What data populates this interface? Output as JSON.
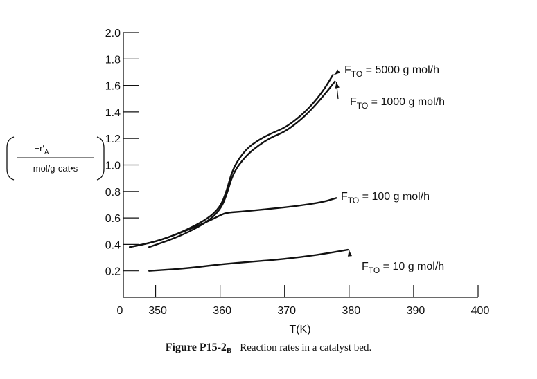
{
  "chart_data": {
    "type": "line",
    "xlabel": "T(K)",
    "ylabel": {
      "numerator": "−r′",
      "numerator_sub": "A",
      "denominator": "mol/g-cat•s"
    },
    "xlim": [
      345,
      400
    ],
    "ylim": [
      0,
      2.0
    ],
    "x_ticks": [
      350,
      360,
      370,
      380,
      390,
      400
    ],
    "x_zero_label": "0",
    "y_ticks": [
      0.2,
      0.4,
      0.6,
      0.8,
      1.0,
      1.2,
      1.4,
      1.6,
      1.8,
      2.0
    ],
    "y_tick_labels": [
      "0.2",
      "0.4",
      "0.6",
      "0.8",
      "1.0",
      "1.2",
      "1.4",
      "1.6",
      "1.8",
      "2.0"
    ],
    "grid": false,
    "series": [
      {
        "name": "F_TO = 5000 g mol/h",
        "label_main": "F",
        "label_sub": "TO",
        "label_rest": " = 5000 g mol/h",
        "x": [
          346,
          350,
          354,
          358,
          360,
          361,
          362,
          364,
          366,
          368,
          370,
          372,
          374,
          376,
          377.5
        ],
        "y": [
          0.38,
          0.42,
          0.49,
          0.59,
          0.68,
          0.8,
          0.98,
          1.12,
          1.19,
          1.24,
          1.28,
          1.35,
          1.44,
          1.56,
          1.68
        ]
      },
      {
        "name": "F_TO = 1000 g mol/h",
        "label_main": "F",
        "label_sub": "TO",
        "label_rest": " = 1000 g mol/h",
        "x": [
          349,
          352,
          355,
          358,
          360,
          361,
          362,
          364,
          366,
          368,
          370,
          372,
          374,
          376,
          377.8
        ],
        "y": [
          0.38,
          0.43,
          0.49,
          0.57,
          0.66,
          0.77,
          0.94,
          1.07,
          1.15,
          1.21,
          1.25,
          1.32,
          1.41,
          1.52,
          1.63
        ]
      },
      {
        "name": "F_TO = 100 g mol/h",
        "label_main": "F",
        "label_sub": "TO",
        "label_rest": " = 100 g mol/h",
        "x": [
          346,
          350,
          354,
          358,
          360,
          361,
          364,
          368,
          372,
          376,
          378
        ],
        "y": [
          0.38,
          0.42,
          0.49,
          0.57,
          0.62,
          0.64,
          0.65,
          0.67,
          0.69,
          0.72,
          0.75
        ]
      },
      {
        "name": "F_TO = 10 g mol/h",
        "label_main": "F",
        "label_sub": "TO",
        "label_rest": " = 10 g mol/h",
        "x": [
          349,
          355,
          360,
          365,
          370,
          375,
          379.8
        ],
        "y": [
          0.2,
          0.22,
          0.25,
          0.27,
          0.29,
          0.32,
          0.36
        ]
      }
    ]
  },
  "caption": {
    "figure": "Figure P15-2",
    "figure_sub": "B",
    "text": "Reaction rates in a catalyst bed."
  }
}
